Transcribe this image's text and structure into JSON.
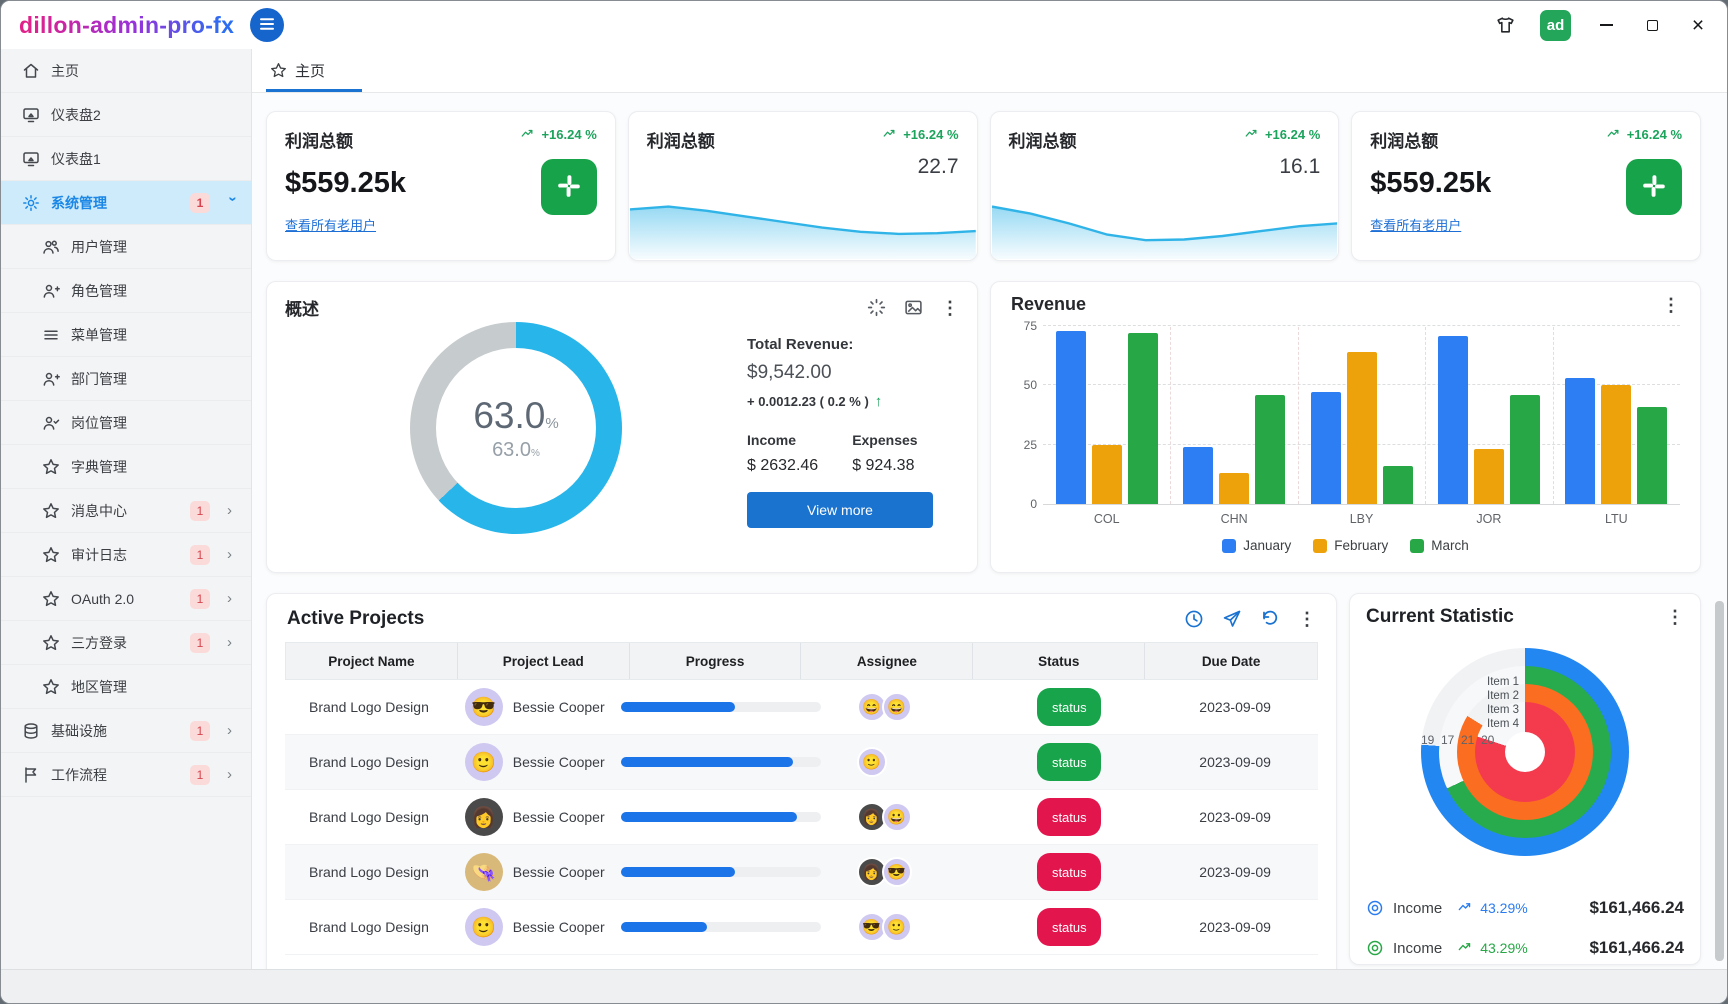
{
  "window": {
    "title": "dillon-admin-pro-fx",
    "avatar_label": "ad",
    "avatar_color": "#23a55a"
  },
  "sidebar": {
    "items": [
      {
        "label": "主页",
        "icon": "home",
        "level": 0
      },
      {
        "label": "仪表盘2",
        "icon": "monitor",
        "level": 0
      },
      {
        "label": "仪表盘1",
        "icon": "monitor",
        "level": 0
      },
      {
        "label": "系统管理",
        "icon": "gear",
        "level": 0,
        "active": true,
        "badge": "1",
        "chevron": "down"
      },
      {
        "label": "用户管理",
        "icon": "users",
        "level": 1
      },
      {
        "label": "角色管理",
        "icon": "user-plus",
        "level": 1
      },
      {
        "label": "菜单管理",
        "icon": "menu-list",
        "level": 1
      },
      {
        "label": "部门管理",
        "icon": "user-plus",
        "level": 1
      },
      {
        "label": "岗位管理",
        "icon": "user-check",
        "level": 1
      },
      {
        "label": "字典管理",
        "icon": "star",
        "level": 1
      },
      {
        "label": "消息中心",
        "icon": "star",
        "level": 1,
        "badge": "1",
        "chevron": "right"
      },
      {
        "label": "审计日志",
        "icon": "star",
        "level": 1,
        "badge": "1",
        "chevron": "right"
      },
      {
        "label": "OAuth 2.0",
        "icon": "star",
        "level": 1,
        "badge": "1",
        "chevron": "right"
      },
      {
        "label": "三方登录",
        "icon": "star",
        "level": 1,
        "badge": "1",
        "chevron": "right"
      },
      {
        "label": "地区管理",
        "icon": "star",
        "level": 1
      },
      {
        "label": "基础设施",
        "icon": "database",
        "level": 0,
        "badge": "1",
        "chevron": "right"
      },
      {
        "label": "工作流程",
        "icon": "flag",
        "level": 0,
        "badge": "1",
        "chevron": "right"
      }
    ]
  },
  "tabbar": {
    "active_tab": "主页"
  },
  "stat_cards": [
    {
      "kind": "action",
      "title": "利润总额",
      "trend": "+16.24 %",
      "value": "$559.25k",
      "link": "查看所有老用户"
    },
    {
      "kind": "spark",
      "title": "利润总额",
      "trend": "+16.24 %",
      "value": "22.7"
    },
    {
      "kind": "spark",
      "title": "利润总额",
      "trend": "+16.24 %",
      "value": "16.1"
    },
    {
      "kind": "action",
      "title": "利润总额",
      "trend": "+16.24 %",
      "value": "$559.25k",
      "link": "查看所有老用户"
    }
  ],
  "overview": {
    "title": "概述",
    "gauge_value": "63.0",
    "gauge_unit": "%",
    "gauge_sub": "63.0",
    "gauge_color": "#27b5ea",
    "gauge_rest_color": "#c6cbce",
    "total_revenue_label": "Total Revenue:",
    "total_revenue": "$9,542.00",
    "change": "+ 0.0012.23 ( 0.2 % )",
    "income_label": "Income",
    "income": "$ 2632.46",
    "expenses_label": "Expenses",
    "expenses": "$ 924.38",
    "view_more": "View more"
  },
  "revenue": {
    "title": "Revenue",
    "categories": [
      "COL",
      "CHN",
      "LBY",
      "JOR",
      "LTU"
    ],
    "yticks": [
      75,
      50,
      25,
      0
    ],
    "ymax": 75,
    "series": [
      {
        "name": "January",
        "color": "#2c7ef2",
        "values": [
          73,
          24,
          47,
          71,
          53
        ]
      },
      {
        "name": "February",
        "color": "#eda20c",
        "values": [
          25,
          13,
          64,
          23,
          50
        ]
      },
      {
        "name": "March",
        "color": "#27a746",
        "values": [
          72,
          46,
          16,
          46,
          41
        ]
      }
    ]
  },
  "projects": {
    "title": "Active Projects",
    "columns": [
      "Project Name",
      "Project Lead",
      "Progress",
      "Assignee",
      "Status",
      "Due Date"
    ],
    "status_label": "status",
    "status_colors": {
      "green": "#17a44a",
      "red": "#e2154d"
    },
    "rows": [
      {
        "name": "Brand Logo Design",
        "lead": "Bessie Cooper",
        "progress": 57,
        "status": "green",
        "due": "2023-09-09",
        "lead_avatar": {
          "emoji": "😎",
          "bg": "#cfc8f0"
        },
        "assignees": [
          {
            "emoji": "😄",
            "bg": "#cfc8f0"
          },
          {
            "emoji": "😄",
            "bg": "#cfc8f0"
          }
        ]
      },
      {
        "name": "Brand Logo Design",
        "lead": "Bessie Cooper",
        "progress": 86,
        "status": "green",
        "due": "2023-09-09",
        "lead_avatar": {
          "emoji": "🙂",
          "bg": "#cfc8f0"
        },
        "assignees": [
          {
            "emoji": "🙂",
            "bg": "#cfc8f0"
          }
        ]
      },
      {
        "name": "Brand Logo Design",
        "lead": "Bessie Cooper",
        "progress": 88,
        "status": "red",
        "due": "2023-09-09",
        "lead_avatar": {
          "emoji": "👩",
          "bg": "#4a4a4a"
        },
        "assignees": [
          {
            "emoji": "👩",
            "bg": "#4a4a4a"
          },
          {
            "emoji": "😀",
            "bg": "#cfc8f0"
          }
        ]
      },
      {
        "name": "Brand Logo Design",
        "lead": "Bessie Cooper",
        "progress": 57,
        "status": "red",
        "due": "2023-09-09",
        "lead_avatar": {
          "emoji": "👒",
          "bg": "#d8b97a"
        },
        "assignees": [
          {
            "emoji": "👩",
            "bg": "#4a4a4a"
          },
          {
            "emoji": "😎",
            "bg": "#cfc8f0"
          }
        ]
      },
      {
        "name": "Brand Logo Design",
        "lead": "Bessie Cooper",
        "progress": 43,
        "status": "red",
        "due": "2023-09-09",
        "lead_avatar": {
          "emoji": "🙂",
          "bg": "#cfc8f0"
        },
        "assignees": [
          {
            "emoji": "😎",
            "bg": "#cfc8f0"
          },
          {
            "emoji": "🙂",
            "bg": "#cfc8f0"
          }
        ]
      }
    ]
  },
  "statistic": {
    "title": "Current Statistic",
    "max": 25,
    "rings": [
      {
        "label": "Item 1",
        "value": 19,
        "color": "#2387f2"
      },
      {
        "label": "Item 2",
        "value": 17,
        "color": "#27ab4c"
      },
      {
        "label": "Item 3",
        "value": 21,
        "color": "#fb6d20"
      },
      {
        "label": "Item 4",
        "value": 20,
        "color": "#f43b4e"
      }
    ],
    "stats": [
      {
        "label": "Income",
        "pct": "43.29%",
        "amount": "$161,466.24",
        "color": "#2b7cf0"
      },
      {
        "label": "Income",
        "pct": "43.29%",
        "amount": "$161,466.24",
        "color": "#27a746"
      }
    ]
  },
  "chart_data": [
    {
      "type": "bar",
      "title": "Revenue",
      "categories": [
        "COL",
        "CHN",
        "LBY",
        "JOR",
        "LTU"
      ],
      "series": [
        {
          "name": "January",
          "values": [
            73,
            24,
            47,
            71,
            53
          ]
        },
        {
          "name": "February",
          "values": [
            25,
            13,
            64,
            23,
            50
          ]
        },
        {
          "name": "March",
          "values": [
            72,
            46,
            16,
            46,
            41
          ]
        }
      ],
      "ylim": [
        0,
        75
      ],
      "yticks": [
        0,
        25,
        50,
        75
      ],
      "grid": true,
      "legend_position": "bottom"
    },
    {
      "type": "pie",
      "title": "概述 donut gauge",
      "labels": [
        "value",
        "remainder"
      ],
      "values": [
        63,
        37
      ],
      "center_text": "63.0%",
      "center_subtext": "63.0"
    },
    {
      "type": "area",
      "title": "利润总额 sparkline",
      "value_label": "22.7",
      "values": [
        34,
        36,
        33,
        29,
        25,
        21,
        18,
        16.5,
        17,
        18.5
      ]
    },
    {
      "type": "area",
      "title": "利润总额 sparkline",
      "value_label": "16.1",
      "values": [
        36,
        31,
        24,
        16,
        12,
        12.5,
        15,
        18.5,
        22,
        24
      ]
    },
    {
      "type": "bar",
      "subtype": "radial",
      "title": "Current Statistic",
      "categories": [
        "Item 1",
        "Item 2",
        "Item 3",
        "Item 4"
      ],
      "values": [
        19,
        17,
        21,
        20
      ],
      "ylim": [
        0,
        25
      ]
    }
  ]
}
